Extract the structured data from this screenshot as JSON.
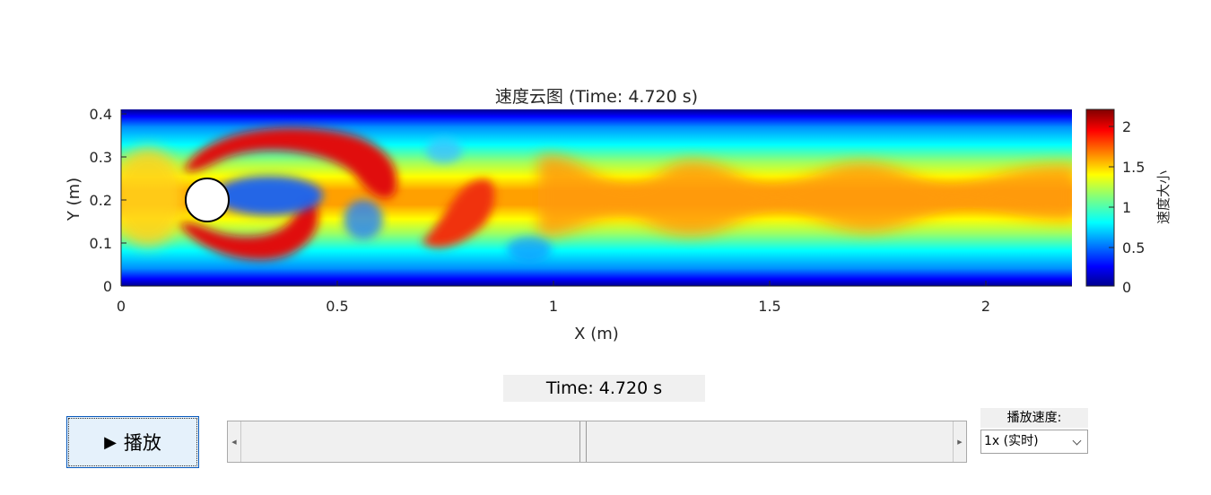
{
  "figure": {
    "title": "速度云图 (Time: 4.720 s)",
    "xlabel": "X (m)",
    "ylabel": "Y (m)",
    "colorbar_label": "速度大小",
    "x_ticks": [
      "0",
      "0.5",
      "1",
      "1.5",
      "2"
    ],
    "y_ticks": [
      "0",
      "0.1",
      "0.2",
      "0.3",
      "0.4"
    ],
    "colorbar_ticks": [
      "0",
      "0.5",
      "1",
      "1.5",
      "2"
    ]
  },
  "chart_data": {
    "type": "heatmap",
    "title": "速度云图 (Time: 4.720 s)",
    "xlabel": "X (m)",
    "ylabel": "Y (m)",
    "xlim": [
      0,
      2.2
    ],
    "ylim": [
      0,
      0.41
    ],
    "colorbar": {
      "label": "速度大小",
      "range": [
        0,
        2.2
      ],
      "colormap": "jet"
    },
    "obstacle": {
      "shape": "circle",
      "center": [
        0.2,
        0.2
      ],
      "radius": 0.05
    },
    "field_notes": "Flow past a cylinder with a vortex street downstream"
  },
  "controls": {
    "time_display": "Time: 4.720 s",
    "play_label": "播放",
    "speed_label": "播放速度:",
    "speed_value": "1x (实时)",
    "slider_value_fraction": 0.48
  },
  "icons": {
    "play": "play-icon",
    "slider_left": "arrow-left-icon",
    "slider_right": "arrow-right-icon",
    "dropdown": "chevron-down-icon"
  }
}
